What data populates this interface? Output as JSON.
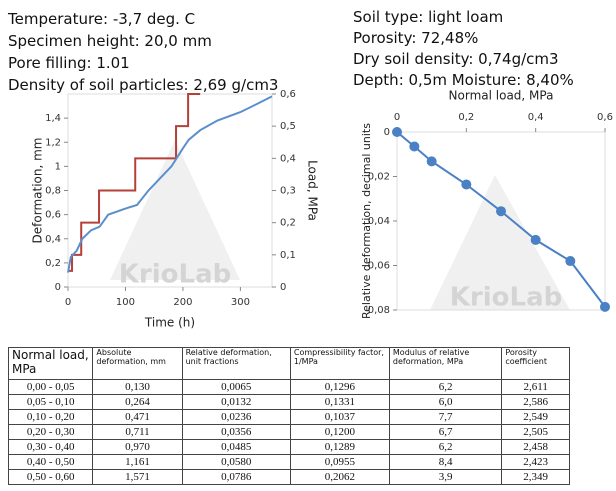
{
  "header": {
    "left": [
      "Temperature: -3,7 deg. C",
      "Specimen height: 20,0 mm",
      "Pore filling: 1.01",
      "Density of soil particles: 2,69 g/cm3"
    ],
    "right": [
      "Soil type: light loam",
      "Porosity: 72,48%",
      "Dry soil density: 0,74g/cm3",
      "Depth: 0,5m Moisture: 8,40%"
    ]
  },
  "chart_data": [
    {
      "type": "line",
      "watermark": "KrioLab",
      "xlabel": "Time (h)",
      "ylabel": "Deformation, mm",
      "y2label": "Load, MPa",
      "xlim": [
        0,
        355
      ],
      "xticks": [
        0,
        100,
        200,
        300
      ],
      "ylim": [
        0,
        1.6
      ],
      "yticks": [
        0,
        {
          "value": 0.2,
          "label": "0,2"
        },
        {
          "value": 0.4,
          "label": "0,4"
        },
        {
          "value": 0.6,
          "label": "0,6"
        },
        {
          "value": 0.8,
          "label": "0,8"
        },
        {
          "value": 1,
          "label": "1"
        },
        {
          "value": 1.2,
          "label": "1,2"
        },
        {
          "value": 1.4,
          "label": "1,4"
        }
      ],
      "y2lim": [
        0,
        0.6
      ],
      "y2ticks": [
        0,
        {
          "value": 0.1,
          "label": "0,1"
        },
        {
          "value": 0.2,
          "label": "0,2"
        },
        {
          "value": 0.3,
          "label": "0,3"
        },
        {
          "value": 0.4,
          "label": "0,4"
        },
        {
          "value": 0.5,
          "label": "0,5"
        },
        {
          "value": 0.6,
          "label": "0,6"
        }
      ],
      "series": [
        {
          "name": "Load",
          "color": "#b5403a",
          "axis": "y2",
          "x": [
            0,
            7,
            7,
            23,
            23,
            54,
            54,
            117,
            117,
            188,
            188,
            209,
            209,
            230
          ],
          "values": [
            0.05,
            0.05,
            0.1,
            0.1,
            0.2,
            0.2,
            0.3,
            0.3,
            0.4,
            0.4,
            0.5,
            0.5,
            0.6,
            0.6
          ]
        },
        {
          "name": "Deformation",
          "color": "#5b8fcc",
          "x": [
            0,
            5,
            15,
            25,
            40,
            55,
            70,
            100,
            120,
            140,
            160,
            180,
            200,
            210,
            230,
            260,
            300,
            330,
            355
          ],
          "values": [
            0.12,
            0.25,
            0.3,
            0.4,
            0.47,
            0.5,
            0.6,
            0.65,
            0.68,
            0.8,
            0.9,
            1.0,
            1.15,
            1.22,
            1.3,
            1.38,
            1.45,
            1.52,
            1.58
          ]
        }
      ]
    },
    {
      "type": "line",
      "watermark": "KrioLab",
      "xlabel": "Normal load, MPa",
      "ylabel": "Relative deformation, decimal units",
      "xlim": [
        0,
        0.6
      ],
      "xticks": [
        0,
        {
          "value": 0.2,
          "label": "0,2"
        },
        {
          "value": 0.4,
          "label": "0,4"
        },
        {
          "value": 0.6,
          "label": "0,6"
        }
      ],
      "ylim": [
        0,
        0.08
      ],
      "y_inverted": true,
      "yticks": [
        0,
        {
          "value": 0.02,
          "label": "0,02"
        },
        {
          "value": 0.04,
          "label": "0,04"
        },
        {
          "value": 0.06,
          "label": "0,06"
        },
        {
          "value": 0.08,
          "label": "0,08"
        }
      ],
      "series": [
        {
          "name": "Relative deformation",
          "color": "#4a80c4",
          "markers": true,
          "x": [
            0,
            0.05,
            0.1,
            0.2,
            0.3,
            0.4,
            0.5,
            0.6
          ],
          "values": [
            0,
            0.0065,
            0.0132,
            0.0236,
            0.0356,
            0.0485,
            0.058,
            0.0786
          ]
        }
      ]
    }
  ],
  "table": {
    "columns": [
      "Normal load, MPa",
      "Absolute deformation, mm",
      "Relative deformation, unit fractions",
      "Compressibility factor, 1/MPa",
      "Modulus of relative deformation, MPa",
      "Porosity coefficient"
    ],
    "rows": [
      [
        "0,00 - 0,05",
        "0,130",
        "0,0065",
        "0,1296",
        "6,2",
        "2,611"
      ],
      [
        "0,05 - 0,10",
        "0,264",
        "0,0132",
        "0,1331",
        "6,0",
        "2,586"
      ],
      [
        "0,10 - 0,20",
        "0,471",
        "0,0236",
        "0,1037",
        "7,7",
        "2,549"
      ],
      [
        "0,20 - 0,30",
        "0,711",
        "0,0356",
        "0,1200",
        "6,7",
        "2,505"
      ],
      [
        "0,30 - 0,40",
        "0,970",
        "0,0485",
        "0,1289",
        "6,2",
        "2,458"
      ],
      [
        "0,40 - 0,50",
        "1,161",
        "0,0580",
        "0,0955",
        "8,4",
        "2,423"
      ],
      [
        "0,50 - 0,60",
        "1,571",
        "0,0786",
        "0,2062",
        "3,9",
        "2,349"
      ]
    ]
  }
}
